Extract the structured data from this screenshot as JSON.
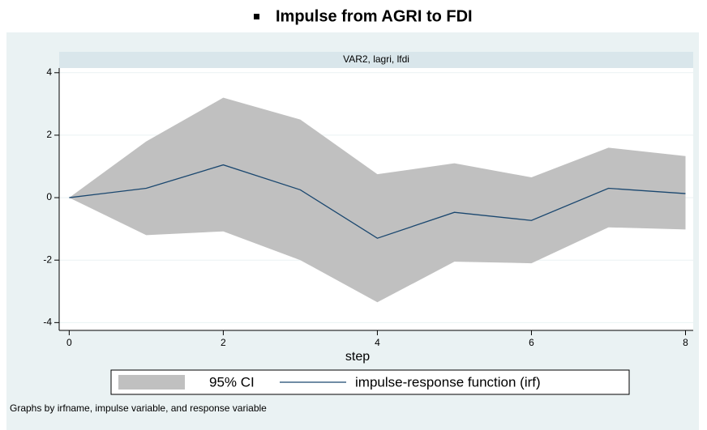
{
  "chart_data": {
    "type": "line",
    "title": "Impulse from AGRI to FDI",
    "subtitle": "VAR2, lagri, lfdi",
    "x_label": "step",
    "note": "Graphs by irfname, impulse variable, and response variable",
    "x": [
      0,
      1,
      2,
      3,
      4,
      5,
      6,
      7,
      8
    ],
    "series": [
      {
        "name": "95% CI",
        "type": "area",
        "color": "#c0c0c0",
        "upper": [
          0,
          1.8,
          3.2,
          2.5,
          0.75,
          1.1,
          0.65,
          1.6,
          1.33
        ],
        "lower": [
          0,
          -1.2,
          -1.08,
          -2.0,
          -3.35,
          -2.05,
          -2.1,
          -0.95,
          -1.02
        ]
      },
      {
        "name": "impulse-response function (irf)",
        "type": "line",
        "color": "#1a476f",
        "values": [
          0,
          0.3,
          1.05,
          0.25,
          -1.3,
          -0.47,
          -0.73,
          0.3,
          0.13
        ]
      }
    ],
    "xlim": [
      -0.13,
      8.1
    ],
    "xticks": [
      0,
      2,
      4,
      6,
      8
    ],
    "ylim": [
      -4.25,
      4.15
    ],
    "yticks": [
      -4,
      -2,
      0,
      2,
      4
    ],
    "grid": true
  }
}
